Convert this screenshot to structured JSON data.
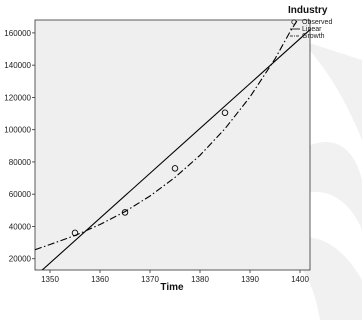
{
  "chart_data": {
    "type": "line",
    "xlabel": "Time",
    "ylabel": "",
    "xlim": [
      1347,
      1402
    ],
    "ylim": [
      13000,
      168000
    ],
    "x_ticks": [
      1350,
      1360,
      1370,
      1380,
      1390,
      1400
    ],
    "y_ticks": [
      20000,
      40000,
      60000,
      80000,
      100000,
      120000,
      140000,
      160000
    ],
    "grid": false,
    "legend": {
      "title": "Industry",
      "placement": "outside-top-right",
      "items": [
        "Observed",
        "Linear",
        "Growth"
      ]
    },
    "series": [
      {
        "name": "Observed",
        "kind": "points",
        "points": [
          [
            1355,
            36000
          ],
          [
            1365,
            48700
          ],
          [
            1375,
            76000
          ],
          [
            1385,
            110500
          ]
        ]
      },
      {
        "name": "Linear",
        "kind": "line",
        "points": [
          [
            1347,
            9000
          ],
          [
            1402,
            162000
          ]
        ]
      },
      {
        "name": "Growth",
        "kind": "line",
        "points": [
          [
            1347,
            25600
          ],
          [
            1350,
            28800
          ],
          [
            1355,
            34400
          ],
          [
            1360,
            41200
          ],
          [
            1365,
            49200
          ],
          [
            1370,
            58900
          ],
          [
            1375,
            70400
          ],
          [
            1380,
            84100
          ],
          [
            1385,
            100600
          ],
          [
            1390,
            120300
          ],
          [
            1395,
            143900
          ],
          [
            1398,
            160600
          ],
          [
            1399.5,
            168000
          ]
        ]
      }
    ]
  },
  "colors": {
    "plot_bg": "#efefef",
    "axis": "#333333",
    "series": "#000000",
    "watermark": "#e2e2e2"
  }
}
